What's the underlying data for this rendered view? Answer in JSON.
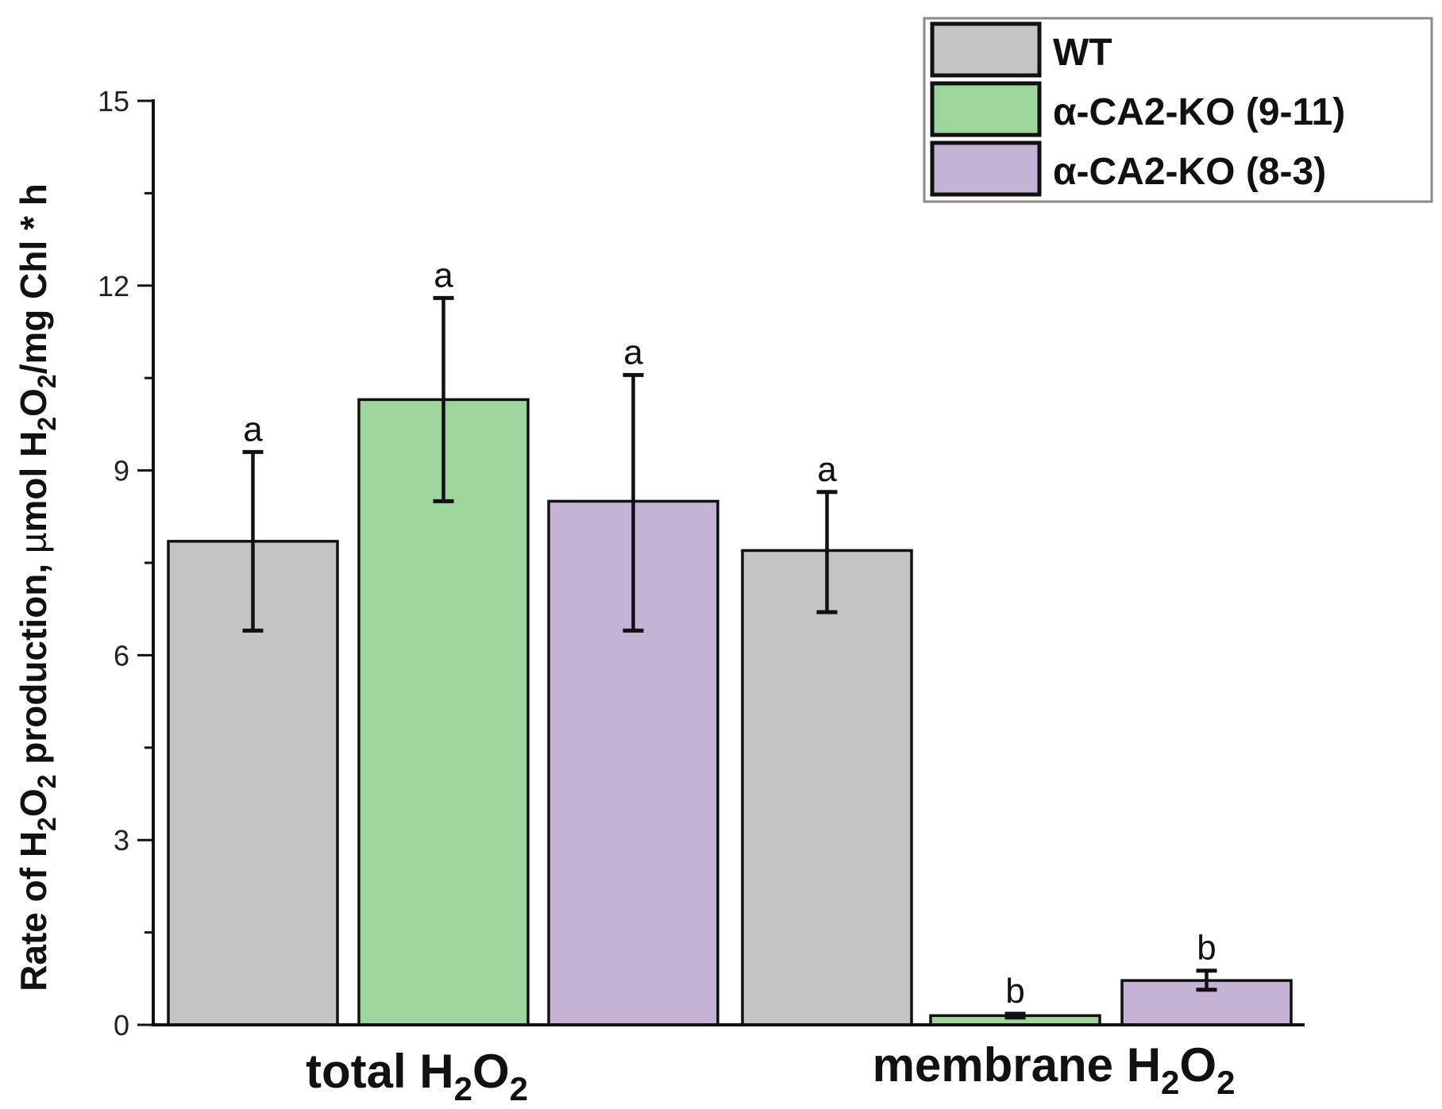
{
  "chart_data": {
    "type": "bar",
    "title": "",
    "xlabel": "",
    "ylabel": "Rate of H2O2 production, µmol H2O2/mg Chl * h",
    "ylabel_parts": {
      "a": "Rate of H",
      "s1": "2",
      "b": "O",
      "s2": "2",
      "c": " production, ",
      "mu": "µ",
      "d": "mol H",
      "s3": "2",
      "e": "O",
      "s4": "2",
      "f": "/mg Chl * h"
    },
    "ylim": [
      0,
      15
    ],
    "yticks": [
      "0",
      "3",
      "6",
      "9",
      "12",
      "15"
    ],
    "grid": false,
    "legend_position": "top-right",
    "categories": [
      "total H2O2",
      "membrane H2O2"
    ],
    "category_labels": [
      {
        "main": "total H",
        "sub1": "2",
        "mid": "O",
        "sub2": "2"
      },
      {
        "main": "membrane H",
        "sub1": "2",
        "mid": "O",
        "sub2": "2"
      }
    ],
    "series": [
      {
        "name": "WT",
        "color": "#c4c4c4",
        "values": [
          7.85,
          7.7
        ],
        "err_low": [
          6.4,
          6.7
        ],
        "err_high": [
          9.3,
          8.65
        ],
        "letters": [
          "a",
          "a"
        ]
      },
      {
        "name": "α-CA2-KO (9-11)",
        "color": "#9dd69c",
        "values": [
          10.15,
          0.15
        ],
        "err_low": [
          8.5,
          0.12
        ],
        "err_high": [
          11.8,
          0.18
        ],
        "letters": [
          "a",
          "b"
        ]
      },
      {
        "name": "α-CA2-KO (8-3)",
        "color": "#c5b3d6",
        "values": [
          8.5,
          0.72
        ],
        "err_low": [
          6.4,
          0.57
        ],
        "err_high": [
          10.55,
          0.88
        ],
        "letters": [
          "a",
          "b"
        ]
      }
    ]
  }
}
